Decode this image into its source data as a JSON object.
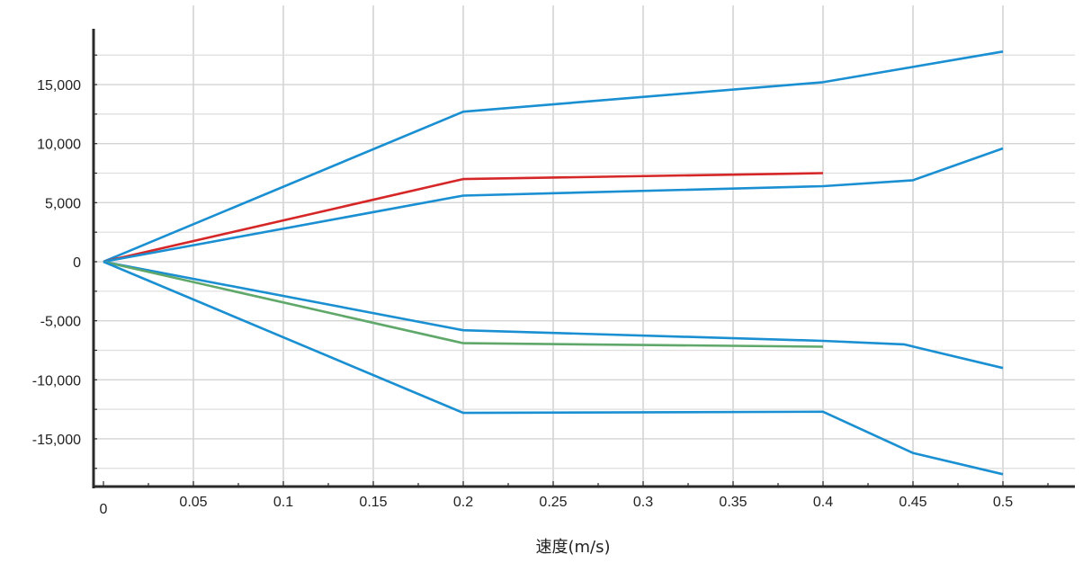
{
  "chart_data": {
    "type": "line",
    "xlabel": "速度(m/s)",
    "ylabel": "",
    "xlim": [
      0,
      0.54
    ],
    "ylim": [
      -19000,
      19500
    ],
    "grid": true,
    "x_ticks": [
      {
        "value": 0,
        "label": "0"
      },
      {
        "value": 0.05,
        "label": "0.05"
      },
      {
        "value": 0.1,
        "label": "0.1"
      },
      {
        "value": 0.15,
        "label": "0.15"
      },
      {
        "value": 0.2,
        "label": "0.2"
      },
      {
        "value": 0.25,
        "label": "0.25"
      },
      {
        "value": 0.3,
        "label": "0.3"
      },
      {
        "value": 0.35,
        "label": "0.35"
      },
      {
        "value": 0.4,
        "label": "0.4"
      },
      {
        "value": 0.45,
        "label": "0.45"
      },
      {
        "value": 0.5,
        "label": "0.5"
      }
    ],
    "y_ticks": [
      {
        "value": 15000,
        "label": "15,000"
      },
      {
        "value": 10000,
        "label": "10,000"
      },
      {
        "value": 5000,
        "label": "5,000"
      },
      {
        "value": 0,
        "label": "0"
      },
      {
        "value": -5000,
        "label": "-5,000"
      },
      {
        "value": -10000,
        "label": "-10,000"
      },
      {
        "value": -15000,
        "label": "-15,000"
      }
    ],
    "series": [
      {
        "color": "#1a8fd1",
        "points": [
          [
            0,
            0
          ],
          [
            0.2,
            12700
          ],
          [
            0.4,
            15200
          ],
          [
            0.5,
            17800
          ]
        ]
      },
      {
        "color": "#d62728",
        "points": [
          [
            0,
            0
          ],
          [
            0.2,
            7000
          ],
          [
            0.4,
            7500
          ]
        ]
      },
      {
        "color": "#1a8fd1",
        "points": [
          [
            0,
            0
          ],
          [
            0.2,
            5600
          ],
          [
            0.4,
            6400
          ],
          [
            0.45,
            6900
          ],
          [
            0.5,
            9600
          ]
        ]
      },
      {
        "color": "#1a8fd1",
        "points": [
          [
            0,
            0
          ],
          [
            0.2,
            -5800
          ],
          [
            0.4,
            -6700
          ],
          [
            0.445,
            -7000
          ],
          [
            0.5,
            -9000
          ]
        ]
      },
      {
        "color": "#5fa86a",
        "points": [
          [
            0,
            0
          ],
          [
            0.2,
            -6900
          ],
          [
            0.4,
            -7200
          ]
        ]
      },
      {
        "color": "#1a8fd1",
        "points": [
          [
            0,
            0
          ],
          [
            0.2,
            -12800
          ],
          [
            0.4,
            -12700
          ],
          [
            0.45,
            -16200
          ],
          [
            0.5,
            -18000
          ]
        ]
      }
    ]
  }
}
